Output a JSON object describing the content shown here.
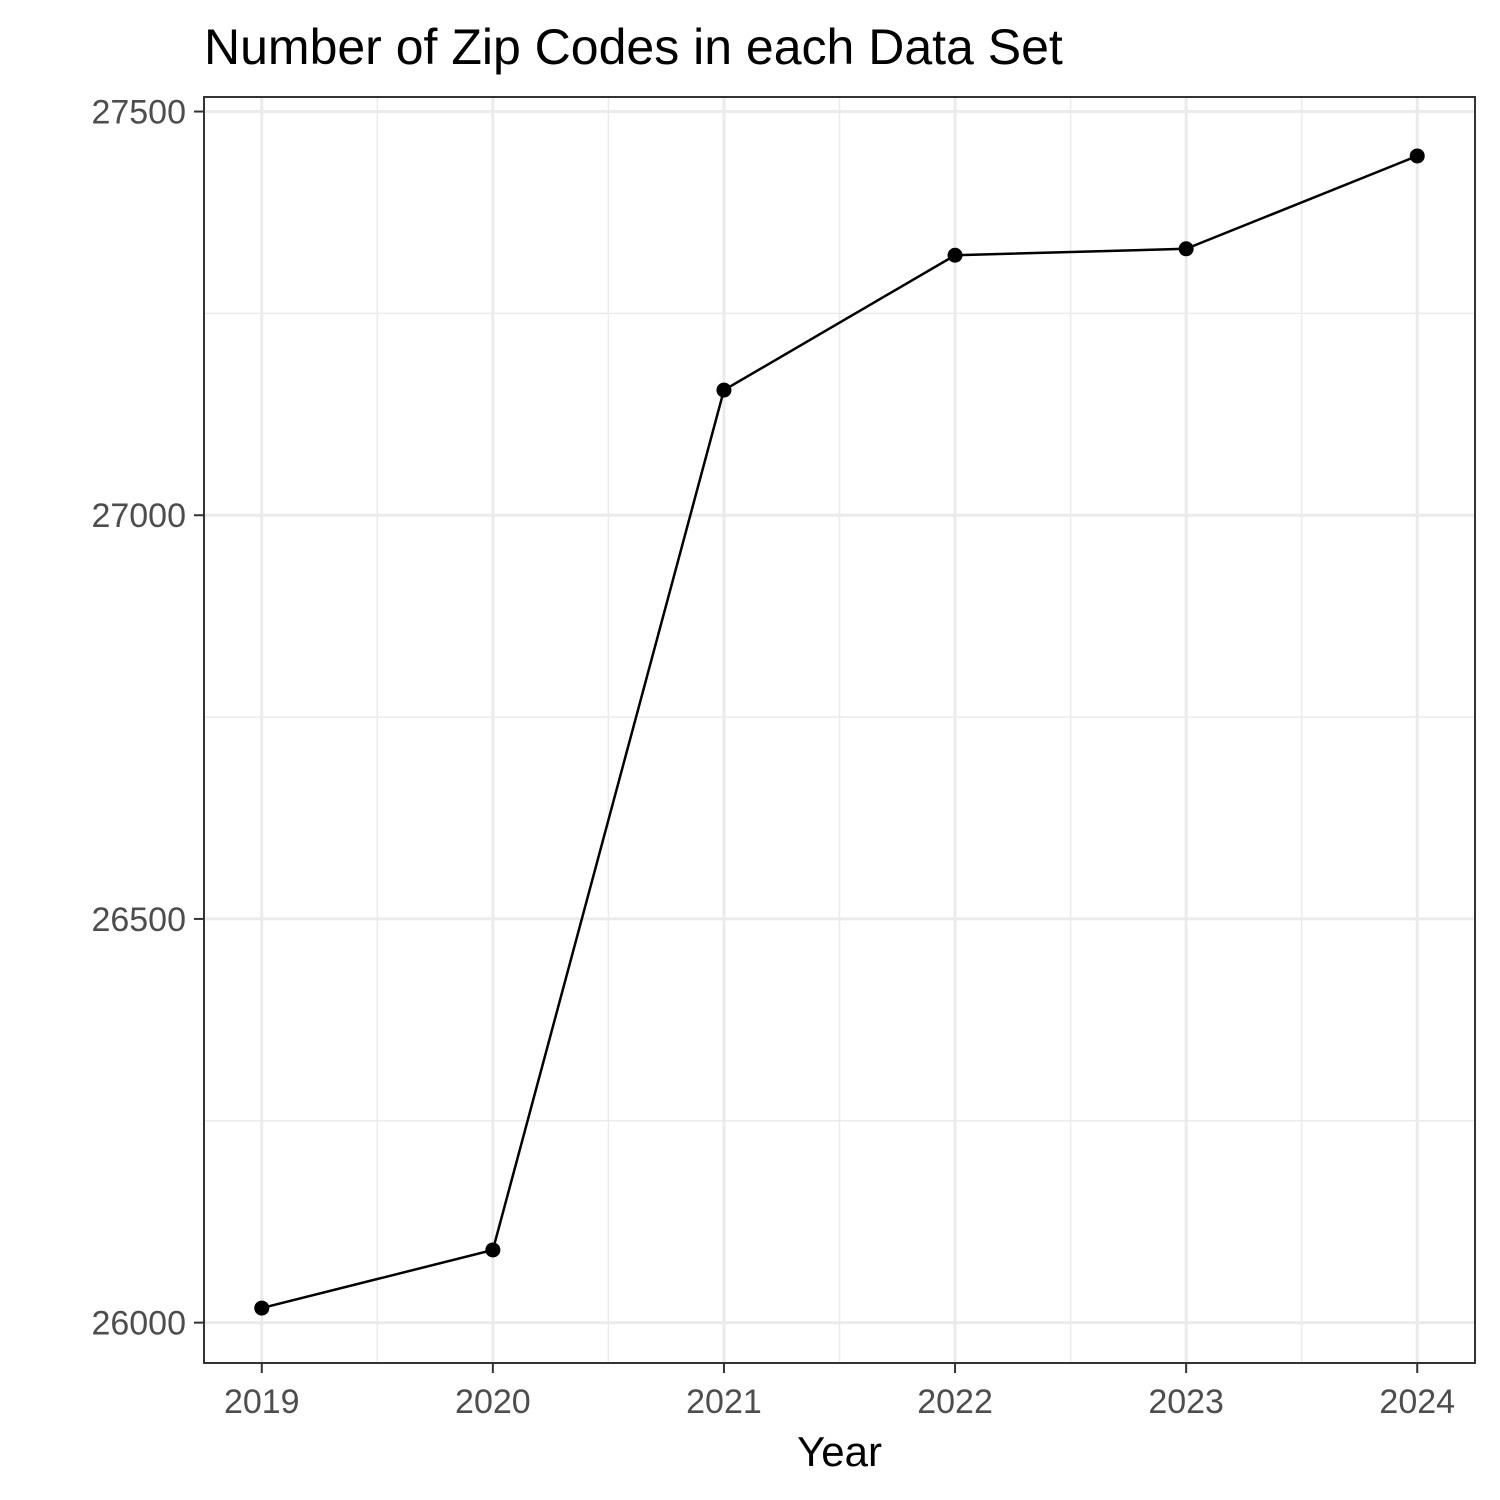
{
  "chart_data": {
    "type": "line",
    "title": "Number of Zip Codes in each Data Set",
    "xlabel": "Year",
    "ylabel": "",
    "x": [
      2019,
      2020,
      2021,
      2022,
      2023,
      2024
    ],
    "series": [
      {
        "values": [
          26018,
          26090,
          27155,
          27322,
          27330,
          27445
        ]
      }
    ],
    "xlim": [
      2018.75,
      2024.25
    ],
    "ylim": [
      25950,
      27518
    ],
    "xticks": [
      2019,
      2020,
      2021,
      2022,
      2023,
      2024
    ],
    "yticks": [
      26000,
      26500,
      27000,
      27500
    ],
    "grid": true,
    "legend": "none",
    "line_color": "#000000",
    "point_color": "#000000",
    "grid_color": "#ebebeb",
    "border_color": "#333333"
  }
}
